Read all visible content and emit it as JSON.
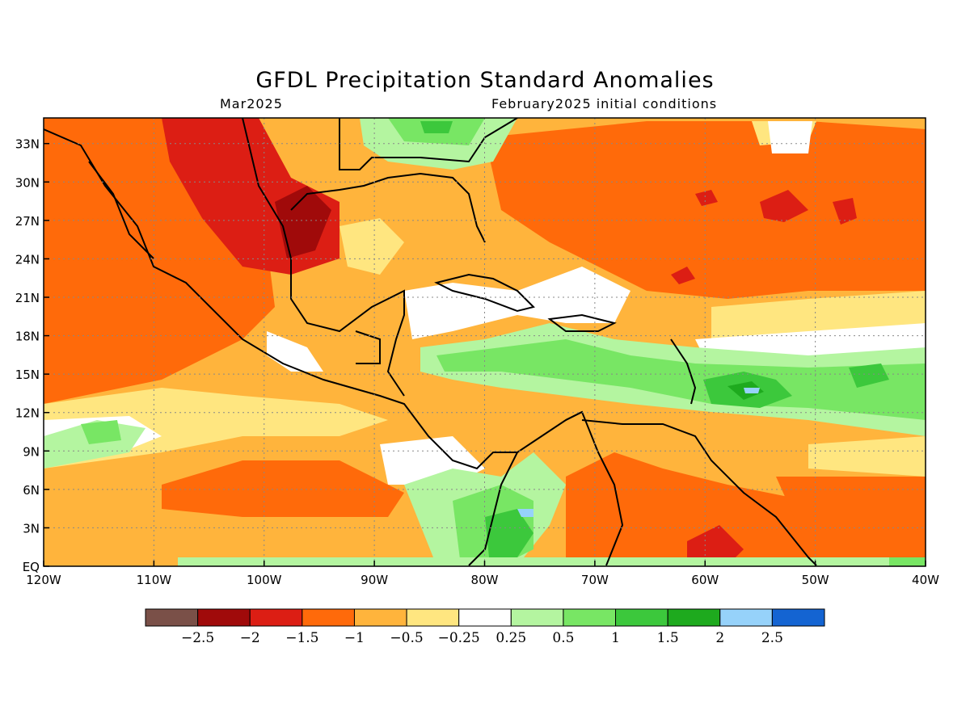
{
  "title": "GFDL Precipitation Standard Anomalies",
  "subtitle_left": "Mar2025",
  "subtitle_right": "February2025 initial conditions",
  "map": {
    "lon_range": [
      -120,
      -40
    ],
    "lat_range": [
      0,
      35
    ],
    "lon_ticks": [
      "120W",
      "110W",
      "100W",
      "90W",
      "80W",
      "70W",
      "60W",
      "50W",
      "40W"
    ],
    "lat_ticks": [
      "EQ",
      "3N",
      "6N",
      "9N",
      "12N",
      "15N",
      "18N",
      "21N",
      "24N",
      "27N",
      "30N",
      "33N"
    ],
    "background_color": "#ffffff"
  },
  "colorbar": {
    "colors": [
      "#7a5048",
      "#a00a0a",
      "#dc1e14",
      "#ff6a0a",
      "#ffb43c",
      "#ffe680",
      "#ffffff",
      "#b4f5a0",
      "#78e664",
      "#3cc83c",
      "#1eaa1e",
      "#96d2fa",
      "#1464d2"
    ],
    "labels": [
      "−2.5",
      "−2",
      "−1.5",
      "−1",
      "−0.5",
      "−0.25",
      "0.25",
      "0.5",
      "1",
      "1.5",
      "2",
      "2.5"
    ]
  }
}
